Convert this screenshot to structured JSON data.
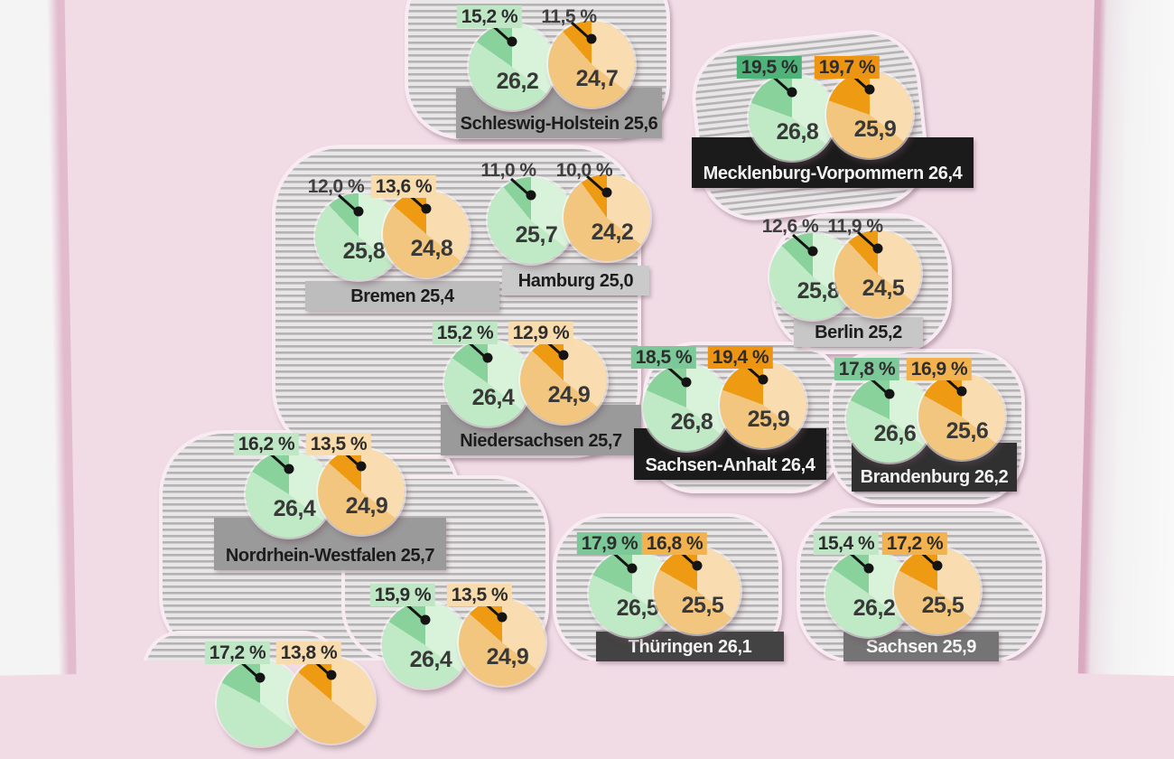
{
  "chart_data": {
    "type": "table",
    "title": "",
    "description": "Statistical map of German federal states. Each state shows a green pie and an orange pie: the large number inside each pie is a value with one decimal, the percentage above each pie is the share highlighted as the dark slice. The label bar under each pair gives the state name and a combined value; darker bars mark higher values.",
    "columns": [
      "state_label",
      "green_value",
      "green_pct",
      "orange_value",
      "orange_pct"
    ],
    "rows": [
      [
        "Schleswig-Holstein 25,6",
        "26,2",
        "15,2 %",
        "24,7",
        "11,5 %"
      ],
      [
        "Mecklenburg-Vorpommern 26,4",
        "26,8",
        "19,5 %",
        "25,9",
        "19,7 %"
      ],
      [
        "Bremen 25,4",
        "25,8",
        "12,0 %",
        "24,8",
        "13,6 %"
      ],
      [
        "Hamburg 25,0",
        "25,7",
        "11,0 %",
        "24,2",
        "10,0 %"
      ],
      [
        "Berlin 25,2",
        "25,8",
        "12,6 %",
        "24,5",
        "11,9 %"
      ],
      [
        "Niedersachsen 25,7",
        "26,4",
        "15,2 %",
        "24,9",
        "12,9 %"
      ],
      [
        "Sachsen-Anhalt 26,4",
        "26,8",
        "18,5 %",
        "25,9",
        "19,4 %"
      ],
      [
        "Brandenburg 26,2",
        "26,6",
        "17,8 %",
        "25,6",
        "16,9 %"
      ],
      [
        "Nordrhein-Westfalen 25,7",
        "26,4",
        "16,2 %",
        "24,9",
        "13,5 %"
      ],
      [
        "Thüringen 26,1",
        "26,5",
        "17,9 %",
        "25,5",
        "16,8 %"
      ],
      [
        "Sachsen 25,9",
        "26,2",
        "15,4 %",
        "25,5",
        "17,2 %"
      ],
      [
        null,
        "26,4",
        "15,9 %",
        "24,9",
        "13,5 %"
      ],
      [
        null,
        null,
        "17,2 %",
        null,
        "13,8 %"
      ]
    ]
  },
  "colors": {
    "page_pink": "#f1dce6",
    "stripe_light": "#e8e6e7",
    "stripe_dark": "#b5b2b4",
    "pointer": "#141414",
    "green_pie": {
      "light": "#d9f2da",
      "base": "#c0e9c6",
      "slice": "#8ad29b"
    },
    "orange_pie": {
      "light": "#f9ddb0",
      "base": "#f3c67f",
      "slice": "#ee9b13"
    },
    "badges": {
      "green-light": "#bfe7c6",
      "green-medium": "#7cc898",
      "green-dark": "#4db378",
      "orange-light": "#f8dcae",
      "orange-medium": "#f2b250",
      "orange-dark": "#ee9413"
    }
  },
  "states": [
    {
      "id": "schleswig-holstein",
      "label": "Schleswig-Holstein 25,6",
      "bar_color": "#9f9f9f",
      "bar_text_color": "#1c1c1c",
      "green": {
        "value": "26,2",
        "pct": "15,2 %",
        "pct_num": 15.2,
        "badge": "green-light"
      },
      "orange": {
        "value": "24,7",
        "pct": "11,5 %",
        "pct_num": 11.5,
        "badge": "none"
      }
    },
    {
      "id": "mecklenburg-vorpommern",
      "label": "Mecklenburg-Vorpommern 26,4",
      "bar_color": "#1b1b1b",
      "bar_text_color": "#f2f2f2",
      "green": {
        "value": "26,8",
        "pct": "19,5 %",
        "pct_num": 19.5,
        "badge": "green-dark"
      },
      "orange": {
        "value": "25,9",
        "pct": "19,7 %",
        "pct_num": 19.7,
        "badge": "orange-dark"
      }
    },
    {
      "id": "bremen",
      "label": "Bremen 25,4",
      "bar_color": "#bdbdbd",
      "bar_text_color": "#1c1c1c",
      "green": {
        "value": "25,8",
        "pct": "12,0 %",
        "pct_num": 12.0,
        "badge": "none"
      },
      "orange": {
        "value": "24,8",
        "pct": "13,6 %",
        "pct_num": 13.6,
        "badge": "orange-light"
      }
    },
    {
      "id": "hamburg",
      "label": "Hamburg 25,0",
      "bar_color": "#cacaca",
      "bar_text_color": "#1c1c1c",
      "green": {
        "value": "25,7",
        "pct": "11,0 %",
        "pct_num": 11.0,
        "badge": "none"
      },
      "orange": {
        "value": "24,2",
        "pct": "10,0 %",
        "pct_num": 10.0,
        "badge": "none"
      }
    },
    {
      "id": "berlin",
      "label": "Berlin 25,2",
      "bar_color": "#c7c7c7",
      "bar_text_color": "#1c1c1c",
      "green": {
        "value": "25,8",
        "pct": "12,6 %",
        "pct_num": 12.6,
        "badge": "none"
      },
      "orange": {
        "value": "24,5",
        "pct": "11,9 %",
        "pct_num": 11.9,
        "badge": "none"
      }
    },
    {
      "id": "niedersachsen",
      "label": "Niedersachsen 25,7",
      "bar_color": "#9a9a9a",
      "bar_text_color": "#1c1c1c",
      "green": {
        "value": "26,4",
        "pct": "15,2 %",
        "pct_num": 15.2,
        "badge": "green-light"
      },
      "orange": {
        "value": "24,9",
        "pct": "12,9 %",
        "pct_num": 12.9,
        "badge": "orange-light"
      }
    },
    {
      "id": "sachsen-anhalt",
      "label": "Sachsen-Anhalt 26,4",
      "bar_color": "#1b1b1b",
      "bar_text_color": "#f2f2f2",
      "green": {
        "value": "26,8",
        "pct": "18,5 %",
        "pct_num": 18.5,
        "badge": "green-medium"
      },
      "orange": {
        "value": "25,9",
        "pct": "19,4 %",
        "pct_num": 19.4,
        "badge": "orange-dark"
      }
    },
    {
      "id": "brandenburg",
      "label": "Brandenburg 26,2",
      "bar_color": "#303030",
      "bar_text_color": "#f2f2f2",
      "green": {
        "value": "26,6",
        "pct": "17,8 %",
        "pct_num": 17.8,
        "badge": "green-medium"
      },
      "orange": {
        "value": "25,6",
        "pct": "16,9 %",
        "pct_num": 16.9,
        "badge": "orange-medium"
      }
    },
    {
      "id": "nordrhein-westfalen",
      "label": "Nordrhein-Westfalen 25,7",
      "bar_color": "#9a9a9a",
      "bar_text_color": "#1c1c1c",
      "green": {
        "value": "26,4",
        "pct": "16,2 %",
        "pct_num": 16.2,
        "badge": "green-light"
      },
      "orange": {
        "value": "24,9",
        "pct": "13,5 %",
        "pct_num": 13.5,
        "badge": "orange-light"
      }
    },
    {
      "id": "thueringen",
      "label": "Thüringen 26,1",
      "bar_color": "#434343",
      "bar_text_color": "#f2f2f2",
      "green": {
        "value": "26,5",
        "pct": "17,9 %",
        "pct_num": 17.9,
        "badge": "green-medium"
      },
      "orange": {
        "value": "25,5",
        "pct": "16,8 %",
        "pct_num": 16.8,
        "badge": "orange-medium"
      }
    },
    {
      "id": "sachsen",
      "label": "Sachsen 25,9",
      "bar_color": "#747474",
      "bar_text_color": "#f7f7f7",
      "green": {
        "value": "26,2",
        "pct": "15,4 %",
        "pct_num": 15.4,
        "badge": "green-light"
      },
      "orange": {
        "value": "25,5",
        "pct": "17,2 %",
        "pct_num": 17.2,
        "badge": "orange-medium"
      }
    },
    {
      "id": "unlabeled-bottom-center",
      "label": null,
      "bar_color": null,
      "bar_text_color": null,
      "green": {
        "value": "26,4",
        "pct": "15,9 %",
        "pct_num": 15.9,
        "badge": "green-light"
      },
      "orange": {
        "value": "24,9",
        "pct": "13,5 %",
        "pct_num": 13.5,
        "badge": "orange-light"
      }
    },
    {
      "id": "unlabeled-bottom-left",
      "label": null,
      "bar_color": null,
      "bar_text_color": null,
      "green": {
        "value": null,
        "pct": "17,2 %",
        "pct_num": 17.2,
        "badge": "green-light"
      },
      "orange": {
        "value": null,
        "pct": "13,8 %",
        "pct_num": 13.8,
        "badge": "orange-light"
      }
    }
  ]
}
